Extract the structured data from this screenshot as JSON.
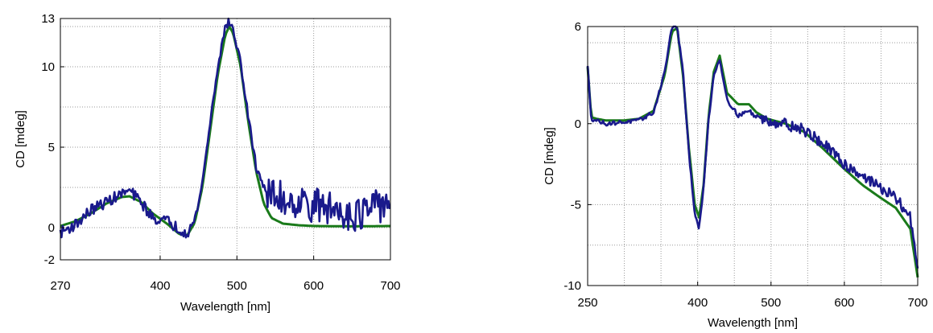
{
  "chart_data": [
    {
      "type": "line",
      "xlabel": "Wavelength [nm]",
      "ylabel": "CD [mdeg]",
      "xlim": [
        270,
        700
      ],
      "ylim": [
        -2,
        13
      ],
      "x_ticks": [
        270,
        400,
        500,
        600,
        700
      ],
      "y_ticks": [
        -2,
        0,
        5,
        10,
        13
      ],
      "x_tick_labels": [
        "270",
        "400",
        "500",
        "600",
        "700"
      ],
      "y_tick_labels": [
        "-2",
        "0",
        "5",
        "10",
        "13"
      ],
      "grid": true,
      "series": [
        {
          "color": "#1a7a1a",
          "x": [
            270,
            290,
            310,
            330,
            350,
            360,
            375,
            390,
            410,
            425,
            435,
            445,
            455,
            465,
            475,
            485,
            490,
            495,
            505,
            515,
            525,
            535,
            545,
            560,
            580,
            600,
            650,
            700
          ],
          "y": [
            0.1,
            0.4,
            0.9,
            1.5,
            1.9,
            1.95,
            1.6,
            0.9,
            0.2,
            -0.4,
            -0.5,
            0.3,
            2.5,
            6.0,
            9.5,
            12.0,
            12.5,
            12.1,
            10.0,
            6.5,
            3.5,
            1.5,
            0.6,
            0.25,
            0.15,
            0.1,
            0.08,
            0.1
          ]
        },
        {
          "color": "#1a1a8c",
          "noise": "high",
          "x": [
            270,
            290,
            310,
            330,
            350,
            360,
            375,
            390,
            410,
            425,
            435,
            445,
            455,
            465,
            475,
            485,
            490,
            495,
            505,
            515,
            525,
            540,
            560,
            580,
            600,
            620,
            640,
            660,
            680,
            700
          ],
          "y": [
            -0.3,
            0.2,
            1.1,
            1.6,
            2.1,
            2.3,
            1.6,
            0.6,
            0.4,
            -0.1,
            -0.3,
            0.4,
            2.8,
            6.5,
            10.0,
            12.5,
            12.8,
            12.3,
            10.2,
            6.8,
            3.8,
            2.0,
            1.8,
            1.6,
            1.4,
            1.2,
            1.0,
            0.8,
            1.2,
            1.8
          ]
        }
      ]
    },
    {
      "type": "line",
      "xlabel": "Wavelength [nm]",
      "ylabel": "CD [mdeg]",
      "xlim": [
        250,
        700
      ],
      "ylim": [
        -10,
        6
      ],
      "x_ticks": [
        250,
        400,
        500,
        600,
        700
      ],
      "y_ticks": [
        -10,
        -5,
        0,
        6
      ],
      "x_tick_labels": [
        "250",
        "400",
        "500",
        "600",
        "700"
      ],
      "y_tick_labels": [
        "-10",
        "-5",
        "0",
        "6"
      ],
      "grid": true,
      "series": [
        {
          "color": "#1a7a1a",
          "x": [
            250,
            255,
            262,
            275,
            300,
            320,
            340,
            355,
            365,
            372,
            380,
            388,
            396,
            402,
            408,
            415,
            422,
            430,
            440,
            455,
            470,
            480,
            495,
            520,
            545,
            570,
            600,
            625,
            650,
            670,
            690,
            700
          ],
          "y": [
            3.5,
            0.4,
            0.3,
            0.2,
            0.2,
            0.3,
            0.8,
            3.0,
            5.7,
            5.9,
            3.0,
            -1.5,
            -5.0,
            -5.8,
            -3.8,
            0.5,
            3.2,
            4.2,
            1.9,
            1.2,
            1.2,
            0.7,
            0.3,
            0.0,
            -0.5,
            -1.5,
            -2.8,
            -3.8,
            -4.6,
            -5.2,
            -6.5,
            -9.5
          ]
        },
        {
          "color": "#1a1a8c",
          "noise": "medium",
          "x": [
            250,
            255,
            262,
            275,
            300,
            320,
            340,
            355,
            365,
            372,
            380,
            388,
            396,
            402,
            408,
            415,
            422,
            430,
            440,
            455,
            470,
            480,
            495,
            520,
            545,
            570,
            600,
            625,
            650,
            670,
            690,
            700
          ],
          "y": [
            3.5,
            0.3,
            0.2,
            0.0,
            0.1,
            0.2,
            0.7,
            3.2,
            6.0,
            6.0,
            3.2,
            -1.8,
            -5.5,
            -6.5,
            -4.0,
            0.3,
            3.0,
            4.0,
            1.5,
            0.5,
            0.8,
            0.4,
            0.2,
            0.0,
            -0.4,
            -1.2,
            -2.5,
            -3.2,
            -4.0,
            -4.6,
            -5.8,
            -8.8
          ]
        }
      ]
    }
  ]
}
